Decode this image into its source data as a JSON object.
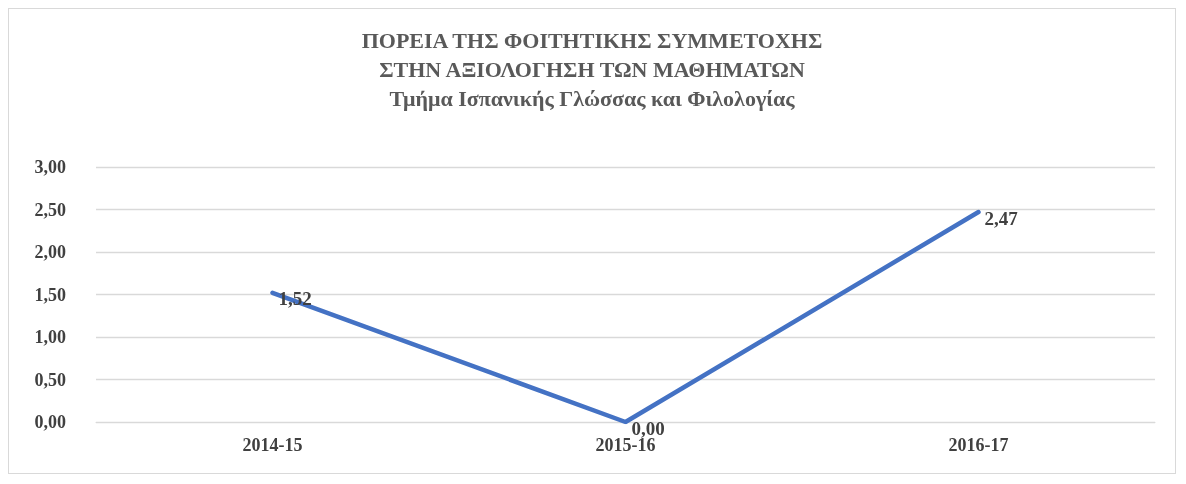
{
  "chart_data": {
    "type": "line",
    "title": "ΠΟΡΕΙΑ ΤΗΣ ΦΟΙΤΗΤΙΚΗΣ ΣΥΜΜΕΤΟΧΗΣ\nΣΤΗΝ ΑΞΙΟΛΟΓΗΣΗ ΤΩΝ ΜΑΘΗΜΑΤΩΝ\nΤμήμα Ισπανικής Γλώσσας και Φιλολογίας",
    "categories": [
      "2014-15",
      "2015-16",
      "2016-17"
    ],
    "series": [
      {
        "color": "#4472c4",
        "values": [
          1.52,
          0,
          2.47
        ],
        "value_labels": [
          "1,52",
          "0,00",
          "2,47"
        ]
      }
    ],
    "ylim": [
      0,
      3
    ],
    "yticks": [
      {
        "value": 0,
        "label": "0,00"
      },
      {
        "value": 0.5,
        "label": "0,50"
      },
      {
        "value": 1,
        "label": "1,00"
      },
      {
        "value": 1.5,
        "label": "1,50"
      },
      {
        "value": 2,
        "label": "2,00"
      },
      {
        "value": 2.5,
        "label": "2,50"
      },
      {
        "value": 3,
        "label": "3,00"
      }
    ],
    "grid": "y",
    "marker": "none",
    "line_style": "solid"
  }
}
